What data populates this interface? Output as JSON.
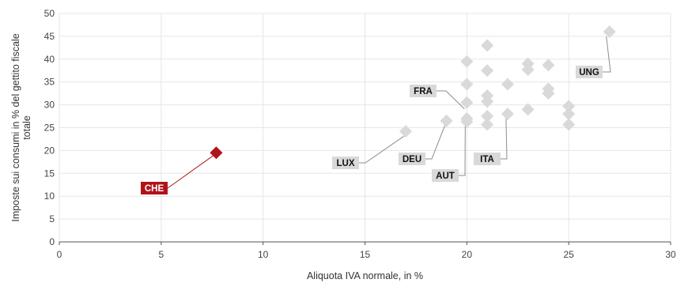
{
  "chart_data": {
    "type": "scatter",
    "xlabel": "Aliquota IVA normale, in %",
    "ylabel": "Imposte sui consumi in % del gettito fiscale totale",
    "xlim": [
      0,
      30
    ],
    "ylim": [
      0,
      50
    ],
    "x_ticks": [
      0,
      5,
      10,
      15,
      20,
      25,
      30
    ],
    "y_ticks": [
      0,
      5,
      10,
      15,
      20,
      25,
      30,
      35,
      40,
      45,
      50
    ],
    "grid": true,
    "colors": {
      "default": "#d9d9d9",
      "highlight": "#b0141a",
      "label_bg": "#d9d9d9",
      "leader": "#8c8c8c"
    },
    "points": [
      {
        "x": 7.7,
        "y": 19.5,
        "label": "CHE",
        "highlight": true
      },
      {
        "x": 17.0,
        "y": 24.2,
        "label": "LUX"
      },
      {
        "x": 19.0,
        "y": 26.5,
        "label": "DEU"
      },
      {
        "x": 20.0,
        "y": 27.0,
        "label": "AUT"
      },
      {
        "x": 20.0,
        "y": 26.3
      },
      {
        "x": 20.0,
        "y": 30.5,
        "label": "FRA"
      },
      {
        "x": 20.0,
        "y": 34.5
      },
      {
        "x": 20.0,
        "y": 39.5
      },
      {
        "x": 21.0,
        "y": 43.0
      },
      {
        "x": 21.0,
        "y": 37.5
      },
      {
        "x": 21.0,
        "y": 32.0
      },
      {
        "x": 21.0,
        "y": 30.7
      },
      {
        "x": 21.0,
        "y": 27.5
      },
      {
        "x": 21.0,
        "y": 25.7
      },
      {
        "x": 22.0,
        "y": 34.5
      },
      {
        "x": 22.0,
        "y": 28.0,
        "label": "ITA"
      },
      {
        "x": 23.0,
        "y": 39.0
      },
      {
        "x": 23.0,
        "y": 37.7
      },
      {
        "x": 23.0,
        "y": 29.0
      },
      {
        "x": 24.0,
        "y": 38.7
      },
      {
        "x": 24.0,
        "y": 33.5
      },
      {
        "x": 24.0,
        "y": 32.5
      },
      {
        "x": 25.0,
        "y": 29.7
      },
      {
        "x": 25.0,
        "y": 28.0
      },
      {
        "x": 25.0,
        "y": 25.7
      },
      {
        "x": 27.0,
        "y": 46.0,
        "label": "UNG"
      }
    ]
  }
}
